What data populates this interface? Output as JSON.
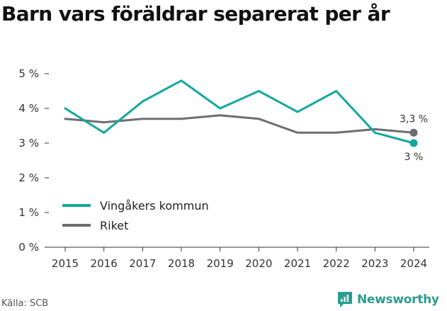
{
  "title": "Barn vars föräldrar separerat per år",
  "source": "Källa: SCB",
  "brand": {
    "name": "Newsworthy",
    "color": "#2a9d8f"
  },
  "chart_data": {
    "type": "line",
    "title": "Barn vars föräldrar separerat per år",
    "xlabel": "",
    "ylabel": "",
    "x": [
      "2015",
      "2016",
      "2017",
      "2018",
      "2019",
      "2020",
      "2021",
      "2022",
      "2023",
      "2024"
    ],
    "ylim": [
      0,
      5
    ],
    "yticks": [
      0,
      1,
      2,
      3,
      4,
      5
    ],
    "ytick_labels": [
      "0 %",
      "1 %",
      "2 %",
      "3 %",
      "4 %",
      "5 %"
    ],
    "grid": false,
    "legend_position": "bottom-left",
    "series": [
      {
        "name": "Vingåkers kommun",
        "color": "#13a89e",
        "values": [
          4.0,
          3.3,
          4.2,
          4.8,
          4.0,
          4.5,
          3.9,
          4.5,
          3.3,
          3.0
        ],
        "end_label": "3 %"
      },
      {
        "name": "Riket",
        "color": "#6d6e73",
        "values": [
          3.7,
          3.6,
          3.7,
          3.7,
          3.8,
          3.7,
          3.3,
          3.3,
          3.4,
          3.3
        ],
        "end_label": "3,3 %"
      }
    ]
  }
}
